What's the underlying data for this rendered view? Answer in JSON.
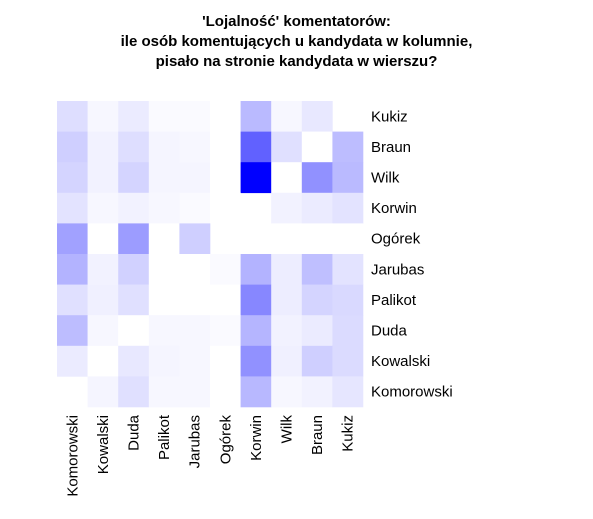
{
  "chart_data": {
    "type": "heatmap",
    "title": [
      "'Lojalność' komentatorów:",
      "ile osób komentujących u kandydata w kolumnie,",
      "pisało na stronie kandydata w wierszu?"
    ],
    "xlabel": "",
    "ylabel": "",
    "x_categories": [
      "Komorowski",
      "Kowalski",
      "Duda",
      "Palikot",
      "Jarubas",
      "Ogórek",
      "Korwin",
      "Wilk",
      "Braun",
      "Kukiz"
    ],
    "y_categories": [
      "Kukiz",
      "Braun",
      "Wilk",
      "Korwin",
      "Ogórek",
      "Jarubas",
      "Palikot",
      "Duda",
      "Kowalski",
      "Komorowski"
    ],
    "values": [
      [
        0.13,
        0.03,
        0.08,
        0.02,
        0.02,
        0.0,
        0.27,
        0.03,
        0.09,
        null
      ],
      [
        0.19,
        0.05,
        0.13,
        0.04,
        0.03,
        0.0,
        0.62,
        0.12,
        0.0,
        0.26
      ],
      [
        0.17,
        0.05,
        0.17,
        0.04,
        0.04,
        0.0,
        1.0,
        0.0,
        0.43,
        0.27
      ],
      [
        0.11,
        0.03,
        0.05,
        0.03,
        0.02,
        0.0,
        null,
        0.05,
        0.08,
        0.11
      ],
      [
        0.37,
        0.0,
        0.39,
        0.0,
        0.19,
        null,
        0.0,
        0.0,
        0.0,
        0.0
      ],
      [
        0.3,
        0.05,
        0.18,
        0.0,
        0.0,
        0.02,
        0.3,
        0.07,
        0.25,
        0.11
      ],
      [
        0.12,
        0.06,
        0.12,
        0.0,
        0.0,
        0.0,
        0.47,
        0.07,
        0.17,
        0.15
      ],
      [
        0.26,
        0.03,
        0.0,
        0.03,
        0.03,
        0.02,
        0.29,
        0.05,
        0.08,
        0.14
      ],
      [
        0.08,
        0.0,
        0.09,
        0.04,
        0.03,
        0.0,
        0.43,
        0.06,
        0.19,
        0.14
      ],
      [
        null,
        0.04,
        0.12,
        0.03,
        0.03,
        0.0,
        0.28,
        0.03,
        0.05,
        0.1
      ]
    ],
    "color_low": "#ffffff",
    "color_high": "#0000ff",
    "grid": false,
    "legend": "none"
  }
}
